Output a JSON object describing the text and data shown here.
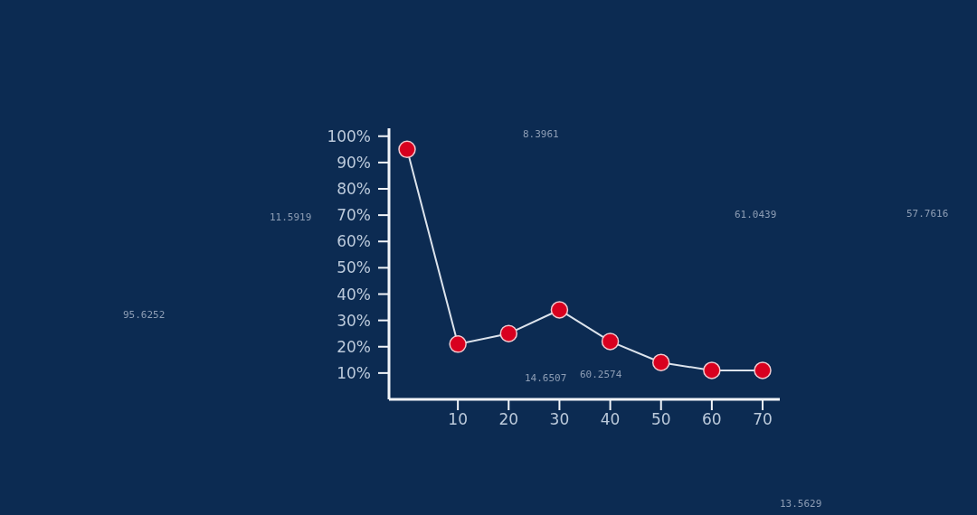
{
  "chart_data": {
    "type": "line",
    "categories": [
      null,
      "10",
      "20",
      "30",
      "40",
      "50",
      "60",
      "70"
    ],
    "series": [
      {
        "color": "#dce3ec",
        "colors": [
          "#d8001f",
          "#d8001f",
          "#d8001f",
          "#d8001f",
          "#d8001f",
          "#d8001f",
          "#d8001f",
          "#d8001f"
        ],
        "values": [
          95,
          21,
          25,
          34,
          22,
          14,
          11,
          11
        ]
      }
    ],
    "ylim": [
      0,
      103
    ],
    "yticks": [
      {
        "value": 10,
        "label": "10%"
      },
      {
        "value": 20,
        "label": "20%"
      },
      {
        "value": 30,
        "label": "30%"
      },
      {
        "value": 40,
        "label": "40%"
      },
      {
        "value": 50,
        "label": "50%"
      },
      {
        "value": 60,
        "label": "60%"
      },
      {
        "value": 70,
        "label": "70%"
      },
      {
        "value": 80,
        "label": "80%"
      },
      {
        "value": 90,
        "label": "90%"
      },
      {
        "value": 100,
        "label": "100%"
      }
    ],
    "marker": "circle",
    "line_style": "solid",
    "annotations": [
      "8.3961",
      "11.5919",
      "95.6252",
      "61.0439",
      "57.7616",
      "14.6507",
      "60.2574",
      "13.5629"
    ]
  }
}
